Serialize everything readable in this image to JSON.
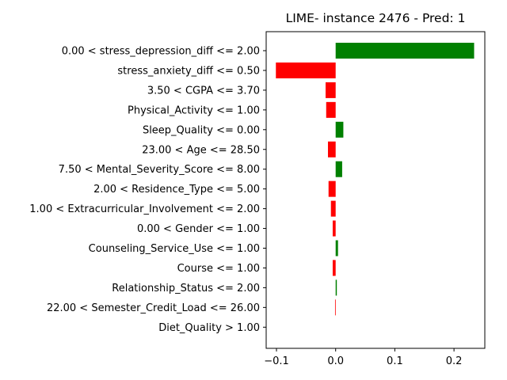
{
  "chart_data": {
    "type": "bar",
    "orientation": "horizontal",
    "title": "LIME- instance 2476 - Pred: 1",
    "xlabel": "",
    "ylabel": "",
    "xlim": [
      -0.1,
      0.25
    ],
    "xticks": [
      -0.1,
      0.0,
      0.1,
      0.2
    ],
    "xtick_labels": [
      "−0.1",
      "0.0",
      "0.1",
      "0.2"
    ],
    "grid": false,
    "positive_color": "#008000",
    "negative_color": "#ff0000",
    "categories": [
      "0.00 < stress_depression_diff <= 2.00",
      "stress_anxiety_diff <= 0.50",
      "3.50 < CGPA <= 3.70",
      "Physical_Activity <= 1.00",
      "Sleep_Quality <= 0.00",
      "23.00 < Age <= 28.50",
      "7.50 < Mental_Severity_Score <= 8.00",
      "2.00 < Residence_Type <= 5.00",
      "1.00 < Extracurricular_Involvement <= 2.00",
      "0.00 < Gender <= 1.00",
      "Counseling_Service_Use <= 1.00",
      "Course <= 1.00",
      "Relationship_Status <= 2.00",
      "22.00 < Semester_Credit_Load <= 26.00",
      "Diet_Quality > 1.00"
    ],
    "values": [
      0.234,
      -0.101,
      -0.017,
      -0.016,
      0.013,
      -0.013,
      0.011,
      -0.012,
      -0.008,
      -0.005,
      0.004,
      -0.005,
      0.002,
      -0.001,
      0.0
    ]
  }
}
